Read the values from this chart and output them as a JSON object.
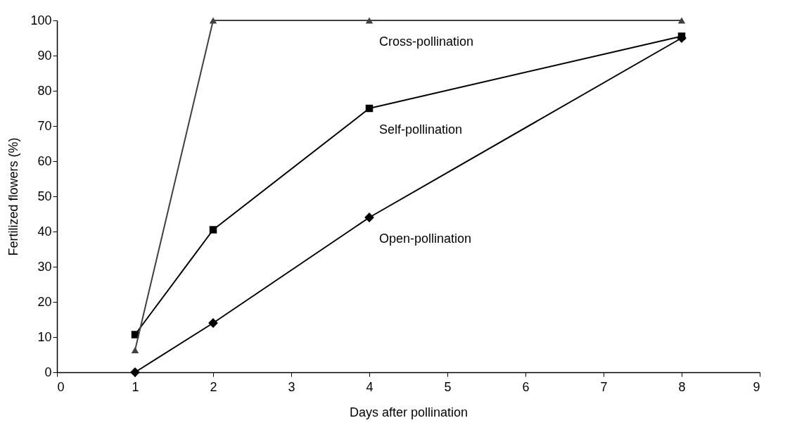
{
  "chart_data": {
    "type": "line",
    "xlabel": "Days after pollination",
    "ylabel": "Fertilized flowers (%)",
    "xlim": [
      0,
      9
    ],
    "xticks": [
      0,
      1,
      2,
      3,
      4,
      5,
      6,
      7,
      8,
      9
    ],
    "ylim": [
      0,
      100
    ],
    "yticks": [
      0,
      10,
      20,
      30,
      40,
      50,
      60,
      70,
      80,
      90,
      100
    ],
    "grid": false,
    "line_style": "solid",
    "x": [
      1,
      2,
      4,
      8
    ],
    "series": [
      {
        "name": "Open-pollination",
        "color": "#000000",
        "marker": "diamond",
        "values": [
          0,
          14,
          44,
          95
        ]
      },
      {
        "name": "Self-pollination",
        "color": "#000000",
        "marker": "square",
        "values": [
          10.7,
          40.5,
          75,
          95.5
        ]
      },
      {
        "name": "Cross-pollination",
        "color": "#404040",
        "marker": "triangle",
        "values": [
          6.3,
          100,
          100,
          100
        ]
      }
    ]
  }
}
